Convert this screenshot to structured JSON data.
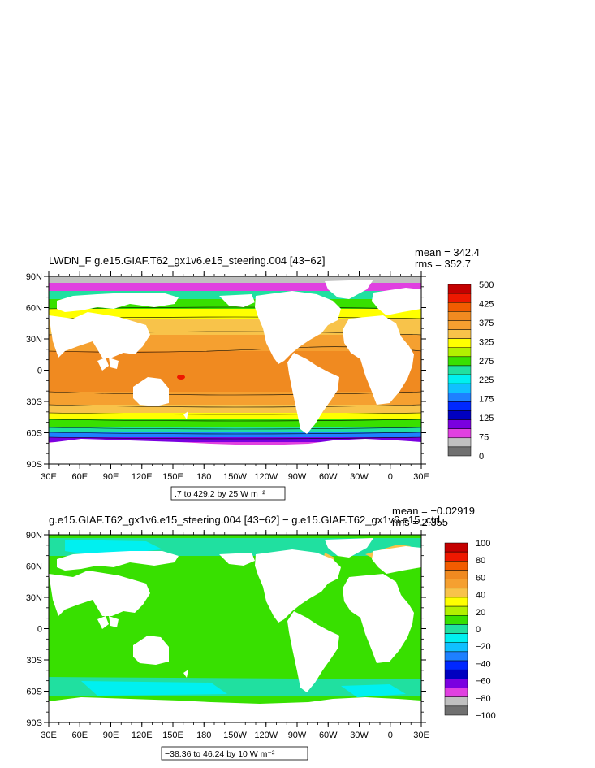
{
  "panels": [
    {
      "title": "LWDN_F  g.e15.GIAF.T62_gx1v6.e15_steering.004  [43−62]",
      "mean_label": "mean = 342.4",
      "rms_label": "rms = 352.7",
      "lat_ticks": [
        "90N",
        "60N",
        "30N",
        "0",
        "30S",
        "60S",
        "90S"
      ],
      "lon_ticks": [
        "30E",
        "60E",
        "90E",
        "120E",
        "150E",
        "180",
        "150W",
        "120W",
        "90W",
        "60W",
        "30W",
        "0",
        "30E"
      ],
      "contour_info": ".7 to 429.2 by 25  W m⁻²",
      "colorbar_labels": [
        "500",
        "425",
        "375",
        "325",
        "275",
        "225",
        "175",
        "125",
        "75",
        "0"
      ],
      "colorbar_colors": [
        "#c40000",
        "#ee1800",
        "#f25c00",
        "#f08a20",
        "#f5a030",
        "#f8c34a",
        "#ffff00",
        "#b2f000",
        "#38e000",
        "#20e0a0",
        "#00f0f0",
        "#10c0ff",
        "#1e80ff",
        "#0028ff",
        "#0000c0",
        "#7a00e0",
        "#e040e0",
        "#c0c0c0",
        "#707070"
      ]
    },
    {
      "title": "g.e15.GIAF.T62_gx1v6.e15_steering.004  [43−62]  −  g.e15.GIAF.T62_gx1v6.e15_ctrl.",
      "mean_label": "mean = −0.02919",
      "rms_label": "rms = 2.355",
      "lat_ticks": [
        "90N",
        "60N",
        "30N",
        "0",
        "30S",
        "60S",
        "90S"
      ],
      "lon_ticks": [
        "30E",
        "60E",
        "90E",
        "120E",
        "150E",
        "180",
        "150W",
        "120W",
        "90W",
        "60W",
        "30W",
        "0",
        "30E"
      ],
      "contour_info": "−38.36 to 46.24 by 10  W m⁻²",
      "colorbar_labels": [
        "100",
        "80",
        "60",
        "40",
        "20",
        "0",
        "−20",
        "−40",
        "−60",
        "−80",
        "−100"
      ],
      "colorbar_colors": [
        "#c40000",
        "#ee1800",
        "#f25c00",
        "#f08a20",
        "#f5a030",
        "#f8c34a",
        "#ffff00",
        "#b2f000",
        "#38e000",
        "#20e0a0",
        "#00f0f0",
        "#10c0ff",
        "#1e80ff",
        "#0028ff",
        "#0000c0",
        "#7a00e0",
        "#e040e0",
        "#c0c0c0",
        "#707070"
      ]
    }
  ]
}
